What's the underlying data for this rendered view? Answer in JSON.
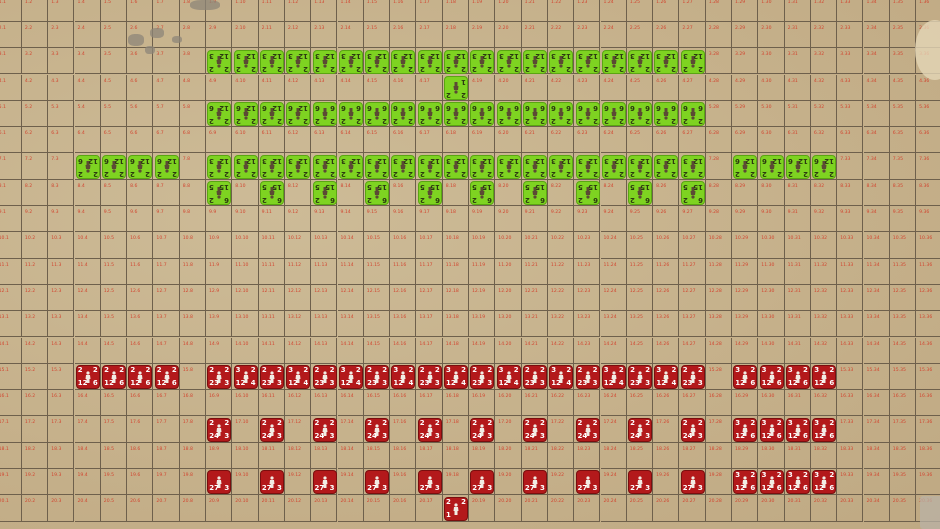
{
  "board": {
    "rows": 20,
    "cols": 36,
    "colors": {
      "parchment": "#c9b691",
      "grid": "#6e604c",
      "label": "#d2452f",
      "red_side": "#b3191b",
      "green_side": "#7ed321"
    }
  },
  "icons": {
    "cavalry": "♞",
    "infantry": "♟",
    "shield-infantry": "♜",
    "leader": "☻",
    "elephant": "♚",
    "archer": "♝",
    "skirmisher": "♙",
    "light": "♗"
  },
  "units": [
    {
      "side": "green",
      "row": 3,
      "cols": [
        9,
        10,
        11,
        12,
        13,
        14,
        15,
        16,
        17,
        18,
        19,
        20,
        21,
        22,
        23,
        24,
        25,
        26,
        27
      ],
      "type": "infantry",
      "stats": [
        "2",
        "2",
        "12",
        "3"
      ]
    },
    {
      "side": "green",
      "row": 4,
      "cols": [
        18
      ],
      "type": "leader",
      "stats": [
        "2",
        "2",
        "1",
        ""
      ]
    },
    {
      "side": "green",
      "row": 5,
      "cols": [
        9,
        10,
        11,
        12
      ],
      "type": "shield-infantry",
      "stats": [
        "2",
        "2",
        "12",
        "6"
      ]
    },
    {
      "side": "green",
      "row": 5,
      "cols": [
        13,
        14,
        15,
        16,
        17,
        18,
        19,
        20,
        21,
        22,
        23,
        24,
        25,
        26,
        27
      ],
      "type": "light",
      "stats": [
        "2",
        "2",
        "6",
        "6"
      ]
    },
    {
      "side": "green",
      "row": 7,
      "cols": [
        4,
        5,
        6,
        7
      ],
      "type": "elephant",
      "stats": [
        "2",
        "2",
        "12",
        "6"
      ]
    },
    {
      "side": "green",
      "row": 7,
      "cols": [
        9,
        10,
        11,
        12,
        13,
        14,
        15,
        16,
        17,
        18,
        19,
        20,
        21,
        22,
        23,
        24,
        25,
        26,
        27
      ],
      "type": "archer",
      "stats": [
        "2",
        "2",
        "12",
        "3"
      ]
    },
    {
      "side": "green",
      "row": 7,
      "cols": [
        29,
        30,
        31,
        32
      ],
      "type": "cavalry",
      "stats": [
        "2",
        "2",
        "12",
        "6"
      ]
    },
    {
      "side": "green",
      "row": 8,
      "cols": [
        9,
        11,
        13,
        15,
        17,
        19,
        21,
        23,
        25,
        27
      ],
      "type": "skirmisher",
      "stats": [
        "6",
        "2",
        "15",
        "5"
      ]
    },
    {
      "side": "red",
      "row": 15,
      "cols": [
        4,
        5,
        6,
        7
      ],
      "type": "cavalry",
      "stats": [
        "2",
        "2",
        "12",
        "6"
      ]
    },
    {
      "side": "red",
      "row": 15,
      "cols": [
        9,
        11,
        13,
        15,
        17,
        19,
        21,
        23,
        25,
        27
      ],
      "type": "shield-infantry",
      "stats": [
        "2",
        "2",
        "23",
        "3"
      ]
    },
    {
      "side": "red",
      "row": 15,
      "cols": [
        10,
        12,
        14,
        16,
        18,
        20,
        22,
        24,
        26
      ],
      "type": "infantry",
      "stats": [
        "3",
        "2",
        "12",
        "4"
      ]
    },
    {
      "side": "red",
      "row": 15,
      "cols": [
        29,
        30,
        31,
        32
      ],
      "type": "elephant",
      "stats": [
        "3",
        "2",
        "12",
        "6"
      ]
    },
    {
      "side": "red",
      "row": 17,
      "cols": [
        9,
        11,
        13,
        15,
        17,
        19,
        21,
        23,
        25,
        27
      ],
      "type": "shield-infantry",
      "stats": [
        "2",
        "2",
        "24",
        "3"
      ]
    },
    {
      "side": "red",
      "row": 17,
      "cols": [
        29,
        30,
        31,
        32
      ],
      "type": "elephant",
      "stats": [
        "3",
        "2",
        "12",
        "6"
      ]
    },
    {
      "side": "red",
      "row": 19,
      "cols": [
        9,
        11,
        13,
        15,
        17,
        19,
        21,
        23,
        25,
        27
      ],
      "type": "infantry",
      "stats": [
        "",
        "",
        "27",
        "3"
      ]
    },
    {
      "side": "red",
      "row": 19,
      "cols": [
        29,
        30,
        31,
        32
      ],
      "type": "elephant",
      "stats": [
        "3",
        "2",
        "12",
        "6"
      ]
    },
    {
      "side": "red",
      "row": 20,
      "cols": [
        18
      ],
      "type": "leader",
      "stats": [
        "2",
        "2",
        "1",
        ""
      ]
    }
  ]
}
